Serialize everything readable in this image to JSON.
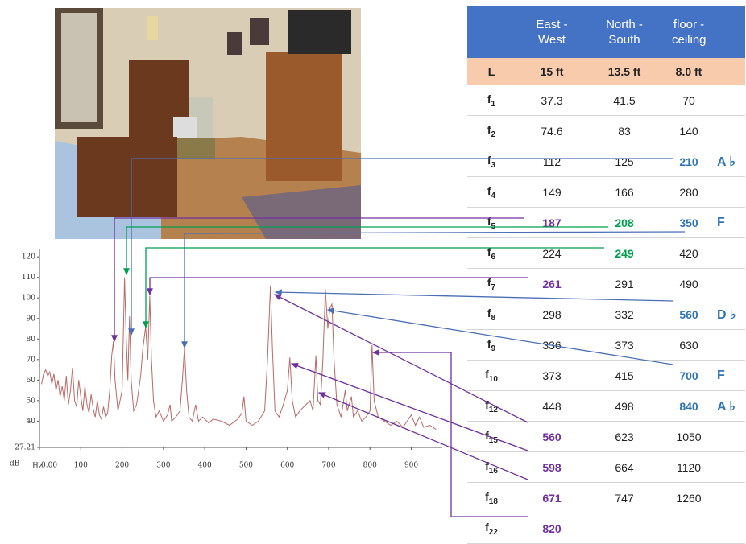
{
  "chart_data": {
    "type": "line",
    "color": "#b86a66",
    "x_label": "Hz",
    "y_label": "dB",
    "x": [
      5,
      10,
      15,
      20,
      25,
      30,
      35,
      40,
      45,
      50,
      55,
      60,
      65,
      70,
      75,
      80,
      85,
      90,
      95,
      100,
      105,
      110,
      115,
      120,
      125,
      130,
      135,
      140,
      145,
      150,
      155,
      160,
      165,
      170,
      175,
      179,
      183,
      190,
      195,
      200,
      206,
      210,
      214,
      218,
      222,
      228,
      235,
      240,
      245,
      250,
      257,
      262,
      267,
      271,
      276,
      282,
      290,
      300,
      310,
      316,
      320,
      330,
      340,
      346,
      351,
      356,
      362,
      370,
      378,
      385,
      395,
      410,
      420,
      440,
      460,
      480,
      490,
      495,
      500,
      515,
      530,
      545,
      552,
      559,
      564,
      570,
      580,
      590,
      600,
      606,
      612,
      620,
      630,
      645,
      655,
      662,
      669,
      674,
      680,
      686,
      692,
      698,
      703,
      708,
      713,
      720,
      730,
      740,
      745,
      755,
      760,
      770,
      780,
      790,
      800,
      805,
      810,
      820,
      835,
      850,
      865,
      880,
      890,
      900,
      910,
      920,
      930,
      945,
      960
    ],
    "values": [
      58,
      63,
      65,
      62,
      64,
      58,
      63,
      55,
      60,
      52,
      57,
      50,
      62,
      48,
      55,
      66,
      50,
      47,
      60,
      52,
      45,
      57,
      48,
      44,
      53,
      46,
      42,
      50,
      43,
      41,
      47,
      42,
      44,
      55,
      72,
      79,
      60,
      45,
      50,
      55,
      110,
      80,
      60,
      91,
      60,
      45,
      48,
      55,
      62,
      75,
      86,
      70,
      101,
      70,
      50,
      42,
      45,
      40,
      43,
      48,
      40,
      42,
      45,
      60,
      76,
      55,
      42,
      40,
      48,
      40,
      42,
      39,
      41,
      40,
      38,
      41,
      44,
      52,
      40,
      38,
      40,
      45,
      70,
      106,
      75,
      45,
      42,
      48,
      55,
      71,
      50,
      42,
      45,
      48,
      50,
      45,
      72,
      50,
      48,
      70,
      104,
      85,
      95,
      97,
      70,
      48,
      42,
      55,
      45,
      52,
      42,
      45,
      40,
      42,
      45,
      77,
      50,
      42,
      40,
      38,
      40,
      37,
      40,
      43,
      38,
      42,
      37,
      38,
      36
    ],
    "xlim": [
      0,
      975
    ],
    "xticks": [
      {
        "value": 0,
        "label": "0.00"
      },
      100,
      200,
      300,
      400,
      500,
      600,
      700,
      800,
      900
    ],
    "ylim": [
      27.21,
      124
    ],
    "yticks": [
      27.21,
      40,
      50,
      60,
      70,
      80,
      90,
      100,
      110,
      120
    ]
  },
  "table": {
    "header": [
      "East - West",
      "North - South",
      "floor - ceiling"
    ],
    "length_row": [
      "L",
      "15 ft",
      "13.5 ft",
      "8.0 ft"
    ],
    "rows": [
      {
        "f": "f",
        "n": "1",
        "cells": [
          37.3,
          41.5,
          70
        ]
      },
      {
        "f": "f",
        "n": "2",
        "cells": [
          74.6,
          83,
          140
        ]
      },
      {
        "f": "f",
        "n": "3",
        "cells": [
          112,
          125,
          {
            "text": 210,
            "color": "#2e75b6"
          }
        ],
        "note": "A ♭"
      },
      {
        "f": "f",
        "n": "4",
        "cells": [
          149,
          166,
          280
        ]
      },
      {
        "f": "f",
        "n": "5",
        "cells": [
          {
            "text": 187,
            "color": "#7030a0"
          },
          {
            "text": 208,
            "color": "#00a050"
          },
          {
            "text": 350,
            "color": "#2e75b6"
          }
        ],
        "note": "F"
      },
      {
        "f": "f",
        "n": "6",
        "cells": [
          224,
          {
            "text": 249,
            "color": "#00a050"
          },
          420
        ]
      },
      {
        "f": "f",
        "n": "7",
        "cells": [
          {
            "text": 261,
            "color": "#7030a0"
          },
          291,
          490
        ]
      },
      {
        "f": "f",
        "n": "8",
        "cells": [
          298,
          332,
          {
            "text": 560,
            "color": "#2e75b6"
          }
        ],
        "note": "D ♭"
      },
      {
        "f": "f",
        "n": "9",
        "cells": [
          336,
          373,
          630
        ]
      },
      {
        "f": "f",
        "n": "10",
        "cells": [
          373,
          415,
          {
            "text": 700,
            "color": "#2e75b6"
          }
        ],
        "note": "F"
      },
      {
        "f": "f",
        "n": "12",
        "cells": [
          448,
          498,
          {
            "text": 840,
            "color": "#2e75b6"
          }
        ],
        "note": "A ♭"
      },
      {
        "f": "f",
        "n": "15",
        "cells": [
          {
            "text": 560,
            "color": "#7030a0"
          },
          623,
          1050
        ]
      },
      {
        "f": "f",
        "n": "16",
        "cells": [
          {
            "text": 598,
            "color": "#7030a0"
          },
          664,
          1120
        ]
      },
      {
        "f": "f",
        "n": "18",
        "cells": [
          {
            "text": 671,
            "color": "#7030a0"
          },
          747,
          1260
        ]
      },
      {
        "f": "f",
        "n": "22",
        "cells": [
          {
            "text": 820,
            "color": "#7030a0"
          }
        ]
      }
    ]
  }
}
